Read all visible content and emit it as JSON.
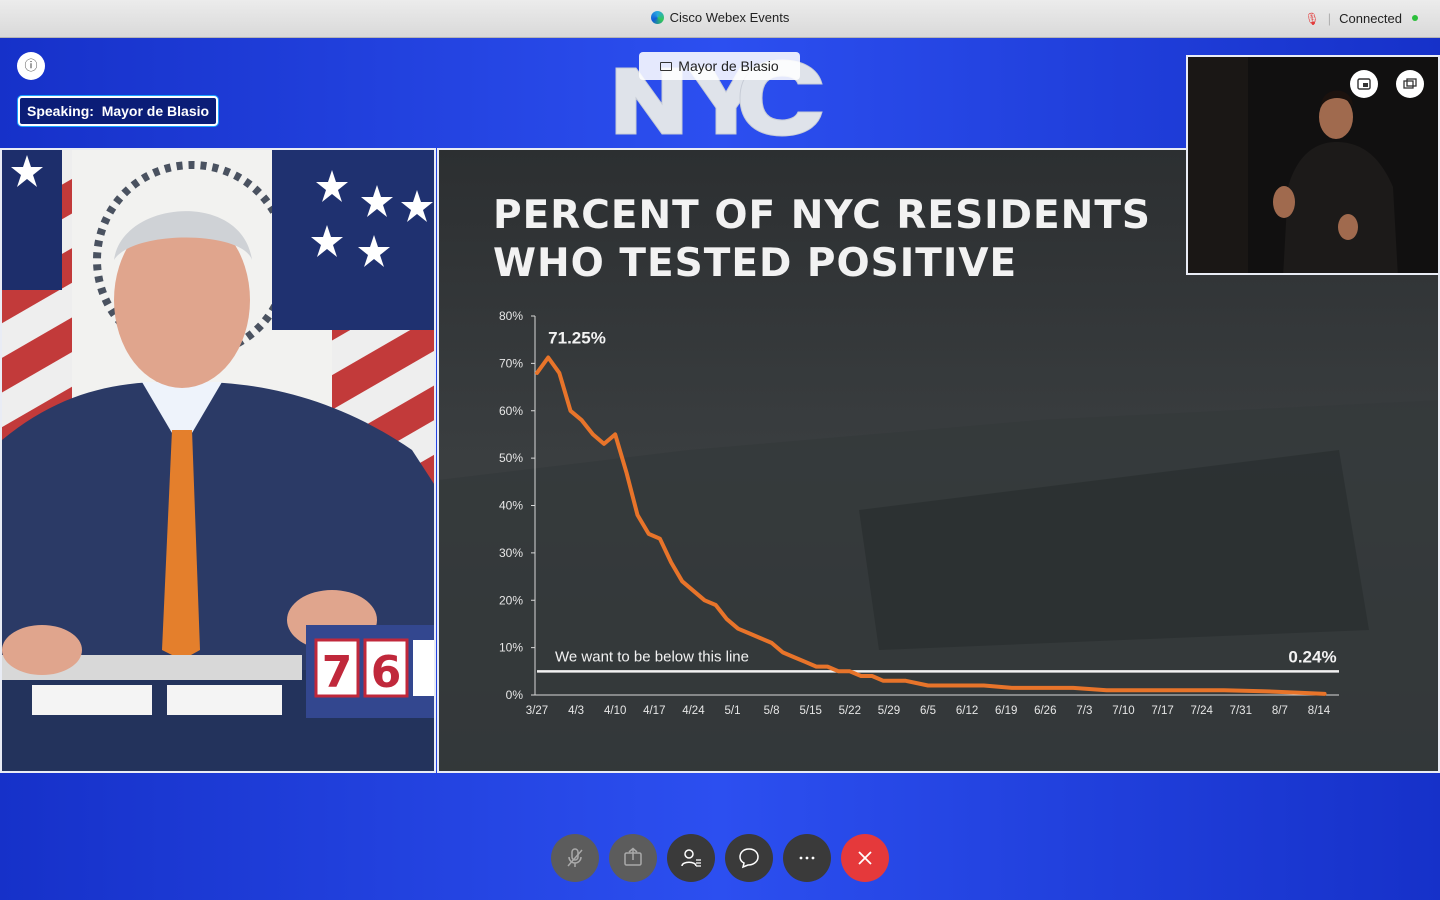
{
  "window": {
    "app_title": "Cisco Webex Events",
    "status": "Connected"
  },
  "meeting": {
    "speaking_label": "Speaking:",
    "speaking_name": "Mayor de Blasio",
    "active_video_name": "Mayor de Blasio",
    "logo_text": "NYC"
  },
  "slide": {
    "title_line1": "PERCENT OF NYC RESIDENTS",
    "title_line2": "WHO TESTED POSITIVE"
  },
  "podium": {
    "digits": [
      "7",
      "6"
    ]
  },
  "chart_data": {
    "type": "line",
    "title": "PERCENT OF NYC RESIDENTS WHO TESTED POSITIVE",
    "xlabel": "",
    "ylabel": "",
    "ylim": [
      0,
      80
    ],
    "y_ticks": [
      "0%",
      "10%",
      "20%",
      "30%",
      "40%",
      "50%",
      "60%",
      "70%",
      "80%"
    ],
    "x_ticks": [
      "3/27",
      "4/3",
      "4/10",
      "4/17",
      "4/24",
      "5/1",
      "5/8",
      "5/15",
      "5/22",
      "5/29",
      "6/5",
      "6/12",
      "6/19",
      "6/26",
      "7/3",
      "7/10",
      "7/17",
      "7/24",
      "7/31",
      "8/7",
      "8/14"
    ],
    "grid": false,
    "line_color": "#e8742a",
    "series": [
      {
        "x": [
          "3/27",
          "3/29",
          "3/31",
          "4/2",
          "4/4",
          "4/6",
          "4/8",
          "4/10",
          "4/12",
          "4/14",
          "4/16",
          "4/18",
          "4/20",
          "4/22",
          "4/24",
          "4/26",
          "4/28",
          "4/30",
          "5/2",
          "5/4",
          "5/6",
          "5/8",
          "5/10",
          "5/12",
          "5/14",
          "5/16",
          "5/18",
          "5/20",
          "5/22",
          "5/24",
          "5/26",
          "5/28",
          "5/30",
          "6/1",
          "6/5",
          "6/10",
          "6/15",
          "6/20",
          "6/25",
          "7/1",
          "7/7",
          "7/14",
          "7/21",
          "7/28",
          "8/4",
          "8/10",
          "8/15"
        ],
        "y": [
          68,
          71.25,
          68,
          60,
          58,
          55,
          53,
          55,
          47,
          38,
          34,
          33,
          28,
          24,
          22,
          20,
          19,
          16,
          14,
          13,
          12,
          11,
          9,
          8,
          7,
          6,
          6,
          5,
          5,
          4,
          4,
          3,
          3,
          3,
          2,
          2,
          2,
          1.5,
          1.5,
          1.5,
          1,
          1,
          1,
          1,
          0.8,
          0.5,
          0.24
        ]
      }
    ],
    "threshold": {
      "value": 5,
      "label": "We want to be below this line"
    },
    "annotations": [
      {
        "text": "71.25%",
        "x": "3/29",
        "y": 71.25
      },
      {
        "text": "0.24%",
        "x": "8/15",
        "y": 0.24
      }
    ]
  },
  "controls": {
    "icons": [
      "mic-off-icon",
      "share-icon",
      "participants-icon",
      "chat-icon",
      "more-icon",
      "end-call-icon"
    ]
  }
}
